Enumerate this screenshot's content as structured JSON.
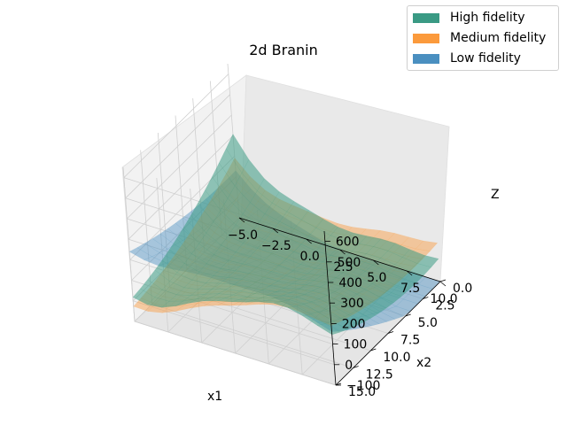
{
  "chart_data": {
    "type": "surface3d",
    "title": "2d Branin",
    "xlabel": "x1",
    "ylabel": "x2",
    "zlabel": "Z",
    "xlim": [
      -5,
      10
    ],
    "ylim": [
      0,
      15
    ],
    "zlim": [
      -100,
      650
    ],
    "xticks": [
      -5.0,
      -2.5,
      0.0,
      2.5,
      5.0,
      7.5,
      10.0
    ],
    "yticks": [
      0.0,
      2.5,
      5.0,
      7.5,
      10.0,
      12.5,
      15.0
    ],
    "zticks": [
      -100,
      0,
      100,
      200,
      300,
      400,
      500,
      600
    ],
    "xtick_labels": [
      "−5.0",
      "−2.5",
      "0.0",
      "2.5",
      "5.0",
      "7.5",
      "10.0"
    ],
    "ytick_labels": [
      "0.0",
      "2.5",
      "5.0",
      "7.5",
      "10.0",
      "12.5",
      "15.0"
    ],
    "ztick_labels": [
      "−100",
      "0",
      "100",
      "200",
      "300",
      "400",
      "500",
      "600"
    ],
    "grid": true,
    "legend_position": "top-right",
    "series": [
      {
        "name": "High fidelity",
        "color": "#3a9a84"
      },
      {
        "name": "Medium fidelity",
        "color": "#fb9a3c"
      },
      {
        "name": "Low fidelity",
        "color": "#4a8fc0"
      }
    ]
  }
}
